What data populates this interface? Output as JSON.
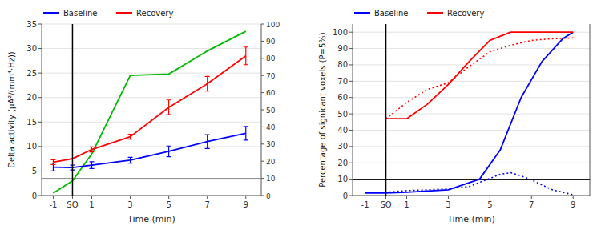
{
  "chart_data": [
    {
      "type": "line",
      "xlabel": "Time (min)",
      "ylabel": "Delta activity (μA²/(mm⁴·Hz))",
      "xlim": [
        -1.6,
        9.8
      ],
      "xticks": [
        -1,
        {
          "value": 0,
          "label": "SO"
        },
        1,
        3,
        5,
        7,
        9
      ],
      "ylim": [
        0,
        35
      ],
      "yticks": [
        0,
        5,
        10,
        15,
        20,
        25,
        30,
        35
      ],
      "y2lim": [
        0,
        100
      ],
      "y2ticks": [
        0,
        10,
        20,
        30,
        40,
        50,
        60,
        70,
        80,
        90,
        100
      ],
      "grid": true,
      "legend": "upper left",
      "x": [
        -1,
        0,
        1,
        3,
        5,
        7,
        9
      ],
      "hlines": [
        {
          "value": 3.5,
          "color": "#888888"
        }
      ],
      "vlines": [
        {
          "value": 0,
          "color": "#000000"
        }
      ],
      "series": [
        {
          "color": "#00bb00",
          "line_style": "solid",
          "values": [
            0.5,
            3.0,
            8.5,
            24.5,
            24.8,
            29.5,
            33.5
          ]
        },
        {
          "name": "Baseline",
          "color": "#0000ff",
          "line_style": "solid",
          "values": [
            5.8,
            5.7,
            6.2,
            7.2,
            9.0,
            11.0,
            12.7
          ],
          "errors": [
            0.8,
            0.5,
            0.7,
            0.6,
            1.1,
            1.4,
            1.4
          ]
        },
        {
          "name": "Recovery",
          "color": "#ff0000",
          "line_style": "solid",
          "values": [
            6.8,
            7.5,
            9.4,
            12.0,
            18.0,
            22.8,
            28.5
          ],
          "errors": [
            0.5,
            0.0,
            0.5,
            0.5,
            1.5,
            1.5,
            1.8
          ]
        }
      ]
    },
    {
      "type": "line",
      "xlabel": "Time (min)",
      "ylabel": "Percentage of signicant voxels (P=5%)",
      "xlim": [
        -1.6,
        9.8
      ],
      "xticks": [
        -1,
        {
          "value": 0,
          "label": "SO"
        },
        1,
        3,
        5,
        7,
        9
      ],
      "ylim": [
        0,
        105
      ],
      "yticks": [
        0,
        10,
        20,
        30,
        40,
        50,
        60,
        70,
        80,
        90,
        100
      ],
      "grid": true,
      "legend": "upper left",
      "hlines": [
        {
          "value": 10,
          "color": "#000000"
        }
      ],
      "vlines": [
        {
          "value": 0,
          "color": "#000000"
        }
      ],
      "series": [
        {
          "name": "Baseline",
          "color": "#0000ff",
          "line_style": "solid",
          "x": [
            -1,
            0,
            1,
            3,
            4.5,
            5.5,
            6.5,
            7.5,
            8.5,
            9
          ],
          "values": [
            1.5,
            1.5,
            2.0,
            3.5,
            10.0,
            28.0,
            60.0,
            82.0,
            96.0,
            100.0
          ]
        },
        {
          "color": "#0000ff",
          "line_style": "dotted",
          "x": [
            -1,
            0,
            1,
            2,
            3,
            4,
            5,
            5.5,
            6,
            6.5,
            7,
            7.5,
            8,
            9
          ],
          "values": [
            2.0,
            2.0,
            3.0,
            3.5,
            4.0,
            5.5,
            10.5,
            13.0,
            14.0,
            12.0,
            9.5,
            6.5,
            3.5,
            0.5
          ]
        },
        {
          "name": "Recovery",
          "color": "#ff0000",
          "line_style": "solid",
          "x": [
            0,
            1,
            2,
            3,
            4,
            5,
            6,
            7,
            8,
            9
          ],
          "values": [
            47.0,
            47.0,
            56.0,
            68.0,
            82.0,
            95.0,
            100.0,
            100.0,
            100.0,
            100.0
          ]
        },
        {
          "color": "#ff0000",
          "line_style": "dotted",
          "x": [
            0,
            1,
            2,
            3,
            4,
            5,
            6,
            7,
            8,
            9
          ],
          "values": [
            47.0,
            57.0,
            65.0,
            69.0,
            79.0,
            88.0,
            92.0,
            95.0,
            96.0,
            96.5
          ]
        }
      ]
    }
  ]
}
